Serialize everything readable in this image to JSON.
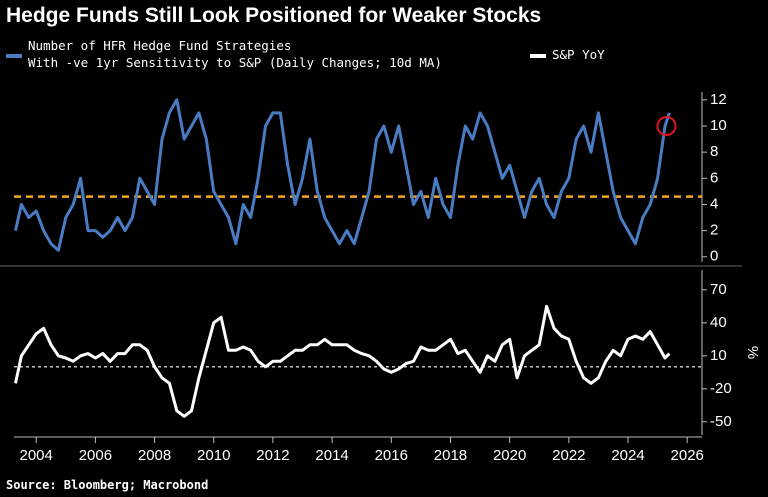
{
  "chart_data": [
    {
      "type": "line",
      "title": "Hedge Funds Still Look Positioned for Weaker Stocks",
      "x": [
        2003.3,
        2003.5,
        2003.75,
        2004,
        2004.25,
        2004.5,
        2004.75,
        2005,
        2005.25,
        2005.5,
        2005.75,
        2006,
        2006.25,
        2006.5,
        2006.75,
        2007,
        2007.25,
        2007.5,
        2007.75,
        2008,
        2008.25,
        2008.5,
        2008.75,
        2009,
        2009.25,
        2009.5,
        2009.75,
        2010,
        2010.25,
        2010.5,
        2010.75,
        2011,
        2011.25,
        2011.5,
        2011.75,
        2012,
        2012.25,
        2012.5,
        2012.75,
        2013,
        2013.25,
        2013.5,
        2013.75,
        2014,
        2014.25,
        2014.5,
        2014.75,
        2015,
        2015.25,
        2015.5,
        2015.75,
        2016,
        2016.25,
        2016.5,
        2016.75,
        2017,
        2017.25,
        2017.5,
        2017.75,
        2018,
        2018.25,
        2018.5,
        2018.75,
        2019,
        2019.25,
        2019.5,
        2019.75,
        2020,
        2020.25,
        2020.5,
        2020.75,
        2021,
        2021.25,
        2021.5,
        2021.75,
        2022,
        2022.25,
        2022.5,
        2022.75,
        2023,
        2023.25,
        2023.5,
        2023.75,
        2024,
        2024.25,
        2024.5,
        2024.75,
        2025,
        2025.25,
        2025.4
      ],
      "series": [
        {
          "name": "Number of HFR Hedge Fund Strategies\nWith -ve 1yr Sensitivity to S&P (Daily Changes; 10d MA)",
          "color": "#4a7cc4",
          "values": [
            2,
            4,
            3,
            3.5,
            2,
            1,
            0.5,
            3,
            4,
            6,
            2,
            2,
            1.5,
            2,
            3,
            2,
            3,
            6,
            5,
            4,
            9,
            11,
            12,
            9,
            10,
            11,
            9,
            5,
            4,
            3,
            1,
            4,
            3,
            6,
            10,
            11,
            11,
            7,
            4,
            6,
            9,
            5,
            3,
            2,
            1,
            2,
            1,
            3,
            5,
            9,
            10,
            8,
            10,
            7,
            4,
            5,
            3,
            6,
            4,
            3,
            7,
            10,
            9,
            11,
            10,
            8,
            6,
            7,
            5,
            3,
            5,
            6,
            4,
            3,
            5,
            6,
            9,
            10,
            8,
            11,
            8,
            5,
            3,
            2,
            1,
            3,
            4,
            6,
            10,
            11
          ]
        }
      ],
      "xlim": [
        2003.25,
        2026.5
      ],
      "ylim": [
        -0.4,
        12.6
      ],
      "yticks": [
        0,
        2,
        4,
        6,
        8,
        10,
        12
      ],
      "reference_line": {
        "y": 4.6,
        "color": "#f5a623"
      },
      "highlight": {
        "x": 2025.3,
        "y": 10,
        "color": "#e0141e"
      }
    },
    {
      "type": "line",
      "x": [
        2003.3,
        2003.5,
        2003.75,
        2004,
        2004.25,
        2004.5,
        2004.75,
        2005,
        2005.25,
        2005.5,
        2005.75,
        2006,
        2006.25,
        2006.5,
        2006.75,
        2007,
        2007.25,
        2007.5,
        2007.75,
        2008,
        2008.25,
        2008.5,
        2008.75,
        2009,
        2009.25,
        2009.5,
        2009.75,
        2010,
        2010.25,
        2010.5,
        2010.75,
        2011,
        2011.25,
        2011.5,
        2011.75,
        2012,
        2012.25,
        2012.5,
        2012.75,
        2013,
        2013.25,
        2013.5,
        2013.75,
        2014,
        2014.25,
        2014.5,
        2014.75,
        2015,
        2015.25,
        2015.5,
        2015.75,
        2016,
        2016.25,
        2016.5,
        2016.75,
        2017,
        2017.25,
        2017.5,
        2017.75,
        2018,
        2018.25,
        2018.5,
        2018.75,
        2019,
        2019.25,
        2019.5,
        2019.75,
        2020,
        2020.25,
        2020.5,
        2020.75,
        2021,
        2021.25,
        2021.5,
        2021.75,
        2022,
        2022.25,
        2022.5,
        2022.75,
        2023,
        2023.25,
        2023.5,
        2023.75,
        2024,
        2024.25,
        2024.5,
        2024.75,
        2025,
        2025.25,
        2025.4
      ],
      "series": [
        {
          "name": "S&P YoY",
          "color": "#ffffff",
          "values": [
            -15,
            10,
            20,
            30,
            35,
            20,
            10,
            8,
            5,
            10,
            12,
            8,
            12,
            5,
            12,
            12,
            20,
            20,
            15,
            0,
            -10,
            -15,
            -40,
            -45,
            -40,
            -10,
            15,
            40,
            45,
            15,
            15,
            18,
            15,
            5,
            0,
            5,
            5,
            10,
            15,
            15,
            20,
            20,
            25,
            20,
            20,
            20,
            15,
            12,
            10,
            5,
            -2,
            -5,
            -2,
            3,
            5,
            18,
            15,
            15,
            20,
            25,
            12,
            15,
            5,
            -5,
            10,
            5,
            20,
            25,
            -10,
            10,
            15,
            20,
            55,
            35,
            28,
            25,
            5,
            -10,
            -15,
            -10,
            5,
            15,
            10,
            25,
            28,
            25,
            32,
            20,
            8,
            12
          ]
        }
      ],
      "xlim": [
        2003.25,
        2026.5
      ],
      "xticks": [
        2004,
        2006,
        2008,
        2010,
        2012,
        2014,
        2016,
        2018,
        2020,
        2022,
        2024,
        2026
      ],
      "ylim": [
        -62,
        88
      ],
      "yticks": [
        -50,
        -20,
        10,
        40,
        70
      ],
      "ylabel": "%",
      "reference_line": {
        "y": 0,
        "color": "#ffffff"
      }
    }
  ],
  "source": "Source: Bloomberg; Macrobond"
}
